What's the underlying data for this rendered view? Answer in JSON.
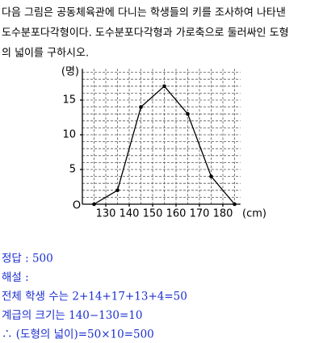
{
  "problem": {
    "lines": [
      "다음 그림은 공동체육관에 다니는 학생들의 키를 조사하여 나타낸",
      "도수분포다각형이다. 도수분포다각형과 가로축으로 둘러싸인 도형",
      "의 넓이를 구하시오."
    ]
  },
  "chart_data": {
    "type": "line",
    "x": [
      125,
      135,
      145,
      155,
      165,
      175,
      185
    ],
    "values": [
      0,
      2,
      14,
      17,
      13,
      4,
      0
    ],
    "color": "#000000",
    "ylabel": "(명)",
    "xlabel": "(cm)",
    "origin_label": "O",
    "xlim": [
      120,
      187.5
    ],
    "ylim": [
      0,
      19.5
    ],
    "xticks": [
      130,
      140,
      150,
      160,
      170,
      180
    ],
    "yticks": [
      5,
      10,
      15
    ],
    "grid": true,
    "grid_step": {
      "x": 5,
      "y": 1
    }
  },
  "solution": {
    "lines": [
      "정답 : 500",
      "해설 :",
      "전체 학생 수는 2+14+17+13+4=50",
      "계급의 크기는 140−130=10",
      "∴ (도형의 넓이)=50×10=500"
    ]
  }
}
